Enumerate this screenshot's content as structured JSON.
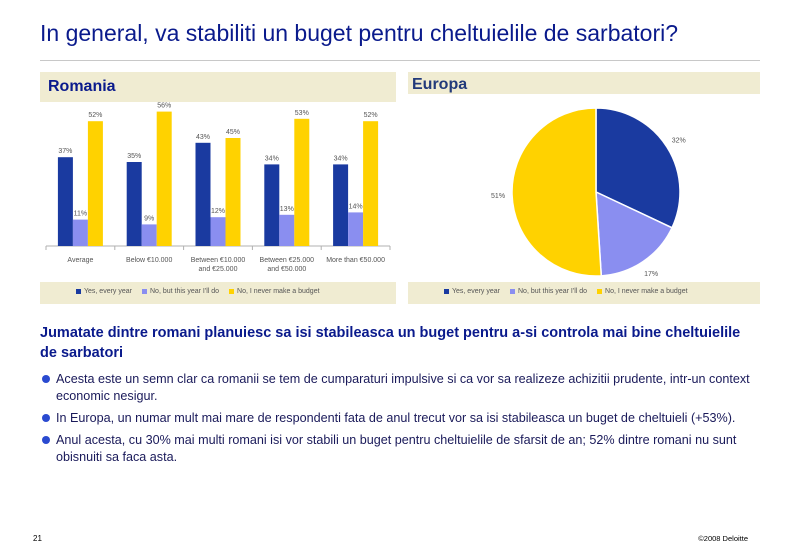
{
  "title": "In general, va stabiliti un buget pentru cheltuielile de sarbatori?",
  "colors": {
    "dark_blue": "#1a3aa0",
    "light_blue": "#8a8ef0",
    "yellow": "#ffd200"
  },
  "chart_data": [
    {
      "type": "bar",
      "title": "Romania",
      "categories": [
        "Average",
        "Below €10.000",
        "Between €10.000 and €25.000",
        "Between €25.000 and €50.000",
        "More than €50.000"
      ],
      "category_lines": [
        [
          "Average"
        ],
        [
          "Below €10.000"
        ],
        [
          "Between €10.000",
          "and €25.000"
        ],
        [
          "Between €25.000",
          "and €50.000"
        ],
        [
          "More than €50.000"
        ]
      ],
      "series": [
        {
          "name": "Yes, every year",
          "values": [
            37,
            35,
            43,
            34,
            34
          ],
          "labels": [
            "37%",
            "35%",
            "43%",
            "34%",
            "34%"
          ],
          "color": "#1a3aa0"
        },
        {
          "name": "No, but this year I'll do",
          "values": [
            11,
            9,
            12,
            13,
            14
          ],
          "labels": [
            "11%",
            "9%",
            "12%",
            "13%",
            "14%"
          ],
          "color": "#8a8ef0"
        },
        {
          "name": "No, I never make a budget",
          "values": [
            52,
            56,
            45,
            53,
            52
          ],
          "labels": [
            "52%",
            "56%",
            "45%",
            "53%",
            "52%"
          ],
          "color": "#ffd200"
        }
      ],
      "ylim": [
        0,
        60
      ],
      "legend": "bottom"
    },
    {
      "type": "pie",
      "title": "Europa",
      "slices": [
        {
          "name": "Yes, every year",
          "value": 32,
          "label": "32%",
          "color": "#1a3aa0"
        },
        {
          "name": "No, but this year I'll do",
          "value": 17,
          "label": "17%",
          "color": "#8a8ef0"
        },
        {
          "name": "No, I never make a budget",
          "value": 51,
          "label": "51%",
          "color": "#ffd200"
        }
      ],
      "legend": "bottom"
    }
  ],
  "subtitle": "Jumatate dintre romani planuiesc sa isi stabileasca un buget pentru a-si controla mai bine cheltuielile de sarbatori",
  "bullets": [
    "Acesta este un semn clar ca romanii se tem de cumparaturi impulsive si ca vor sa realizeze achizitii prudente, intr-un context economic nesigur.",
    "In Europa, un numar mult mai mare de respondenti fata de anul trecut vor sa isi stabileasca un buget de cheltuieli (+53%).",
    "Anul acesta, cu 30% mai multi romani isi vor stabili un buget pentru cheltuielile de sfarsit de an; 52% dintre romani nu sunt obisnuiti sa faca asta."
  ],
  "footer": {
    "page_number": "21",
    "copyright": "©2008 Deloitte"
  }
}
